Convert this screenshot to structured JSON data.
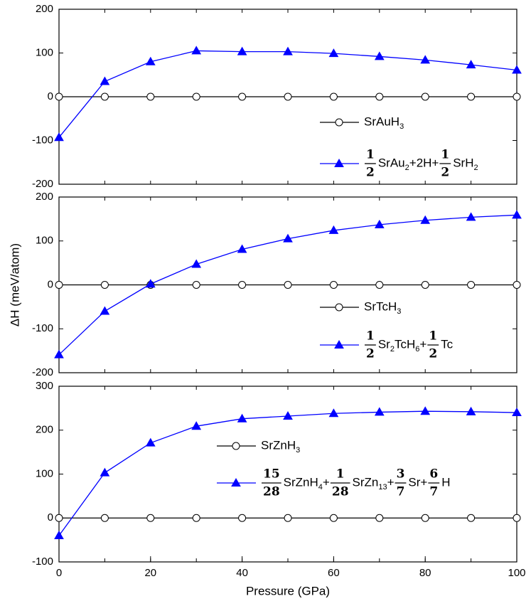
{
  "chart_data": [
    {
      "type": "line",
      "x": [
        0,
        10,
        20,
        30,
        40,
        50,
        60,
        70,
        80,
        90,
        100
      ],
      "xlim": [
        0,
        100
      ],
      "ylim": [
        -200,
        200
      ],
      "yticks": [
        -200,
        -100,
        0,
        100,
        200
      ],
      "series": [
        {
          "name": [
            "SrAuH",
            {
              "sub": "3"
            }
          ],
          "color": "#000000",
          "marker": "circle",
          "values": [
            0,
            0,
            0,
            0,
            0,
            0,
            0,
            0,
            0,
            0,
            0
          ]
        },
        {
          "name": [
            {
              "num": "1",
              "den": "2"
            },
            "SrAu",
            {
              "sub": "2"
            },
            "+2H+",
            {
              "num": "1",
              "den": "2"
            },
            "SrH",
            {
              "sub": "2"
            }
          ],
          "color": "#0000ff",
          "marker": "triangle",
          "values": [
            -93,
            35,
            80,
            105,
            103,
            103,
            99,
            92,
            84,
            73,
            61
          ]
        }
      ]
    },
    {
      "type": "line",
      "x": [
        0,
        10,
        20,
        30,
        40,
        50,
        60,
        70,
        80,
        90,
        100
      ],
      "xlim": [
        0,
        100
      ],
      "ylim": [
        -200,
        200
      ],
      "yticks": [
        -200,
        -100,
        0,
        100,
        200
      ],
      "ylabel": "ΔH (meV/atom)",
      "series": [
        {
          "name": [
            "SrTcH",
            {
              "sub": "3"
            }
          ],
          "color": "#000000",
          "marker": "circle",
          "values": [
            0,
            0,
            0,
            0,
            0,
            0,
            0,
            0,
            0,
            0,
            0
          ]
        },
        {
          "name": [
            {
              "num": "1",
              "den": "2"
            },
            "Sr",
            {
              "sub": "2"
            },
            "TcH",
            {
              "sub": "6"
            },
            "+",
            {
              "num": "1",
              "den": "2"
            },
            "Tc"
          ],
          "color": "#0000ff",
          "marker": "triangle",
          "values": [
            -159,
            -60,
            2,
            47,
            81,
            105,
            124,
            137,
            147,
            154,
            159
          ]
        }
      ]
    },
    {
      "type": "line",
      "x": [
        0,
        10,
        20,
        30,
        40,
        50,
        60,
        70,
        80,
        90,
        100
      ],
      "xlim": [
        0,
        100
      ],
      "xticks": [
        0,
        20,
        40,
        60,
        80,
        100
      ],
      "ylim": [
        -100,
        300
      ],
      "yticks": [
        -100,
        0,
        100,
        200,
        300
      ],
      "xlabel": "Pressure (GPa)",
      "series": [
        {
          "name": [
            "SrZnH",
            {
              "sub": "3"
            }
          ],
          "color": "#000000",
          "marker": "circle",
          "values": [
            0,
            0,
            0,
            0,
            0,
            0,
            0,
            0,
            0,
            0,
            0
          ]
        },
        {
          "name": [
            {
              "num": "15",
              "den": "28"
            },
            "SrZnH",
            {
              "sub": "4"
            },
            "+",
            {
              "num": "1",
              "den": "28"
            },
            "SrZn",
            {
              "sub": "13"
            },
            "+",
            {
              "num": "3",
              "den": "7"
            },
            "Sr+",
            {
              "num": "6",
              "den": "7"
            },
            "H"
          ],
          "color": "#0000ff",
          "marker": "triangle",
          "values": [
            -40,
            103,
            171,
            209,
            226,
            232,
            238,
            241,
            243,
            242,
            240
          ]
        }
      ]
    }
  ]
}
